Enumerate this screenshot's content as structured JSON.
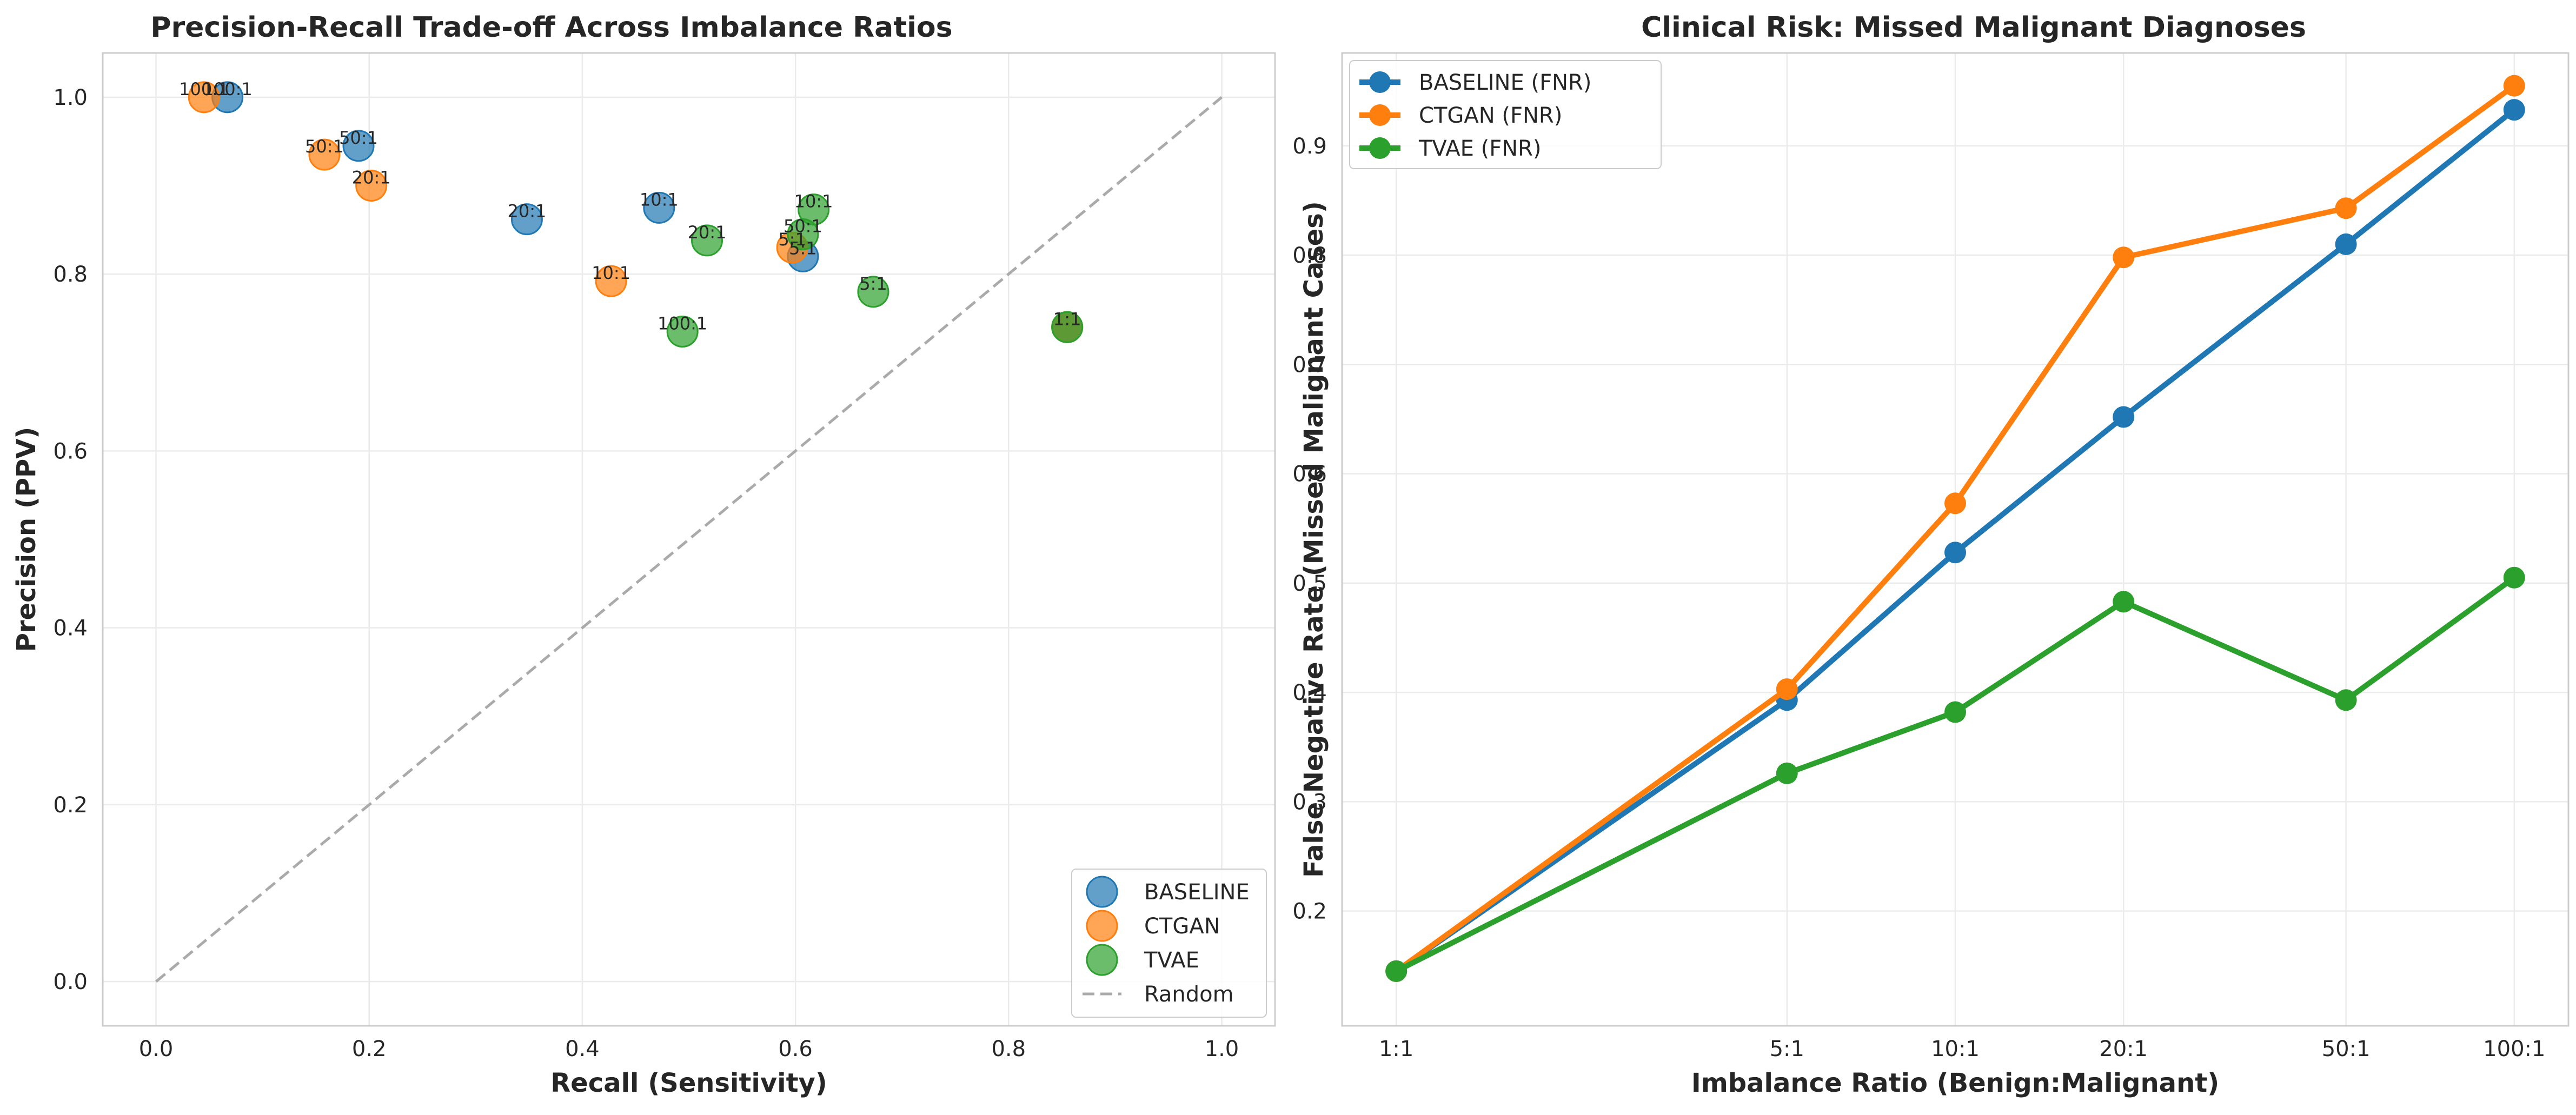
{
  "colors": {
    "BASELINE": "#1f77b4",
    "CTGAN": "#ff7f0e",
    "TVAE": "#2ca02c",
    "Random": "#aaaaaa"
  },
  "chart_data": [
    {
      "type": "scatter",
      "title": "Precision-Recall Trade-off Across Imbalance Ratios",
      "xlabel": "Recall (Sensitivity)",
      "ylabel": "Precision (PPV)",
      "xlim": [
        -0.05,
        1.05
      ],
      "ylim": [
        -0.05,
        1.05
      ],
      "xticks": [
        "0.0",
        "0.2",
        "0.4",
        "0.6",
        "0.8",
        "1.0"
      ],
      "yticks": [
        "0.0",
        "0.2",
        "0.4",
        "0.6",
        "0.8",
        "1.0"
      ],
      "grid": true,
      "legend_position": "lower-right",
      "series": [
        {
          "name": "BASELINE",
          "points": [
            {
              "x": 0.855,
              "y": 0.74,
              "label": "1:1"
            },
            {
              "x": 0.607,
              "y": 0.82,
              "label": "5:1"
            },
            {
              "x": 0.472,
              "y": 0.875,
              "label": "10:1"
            },
            {
              "x": 0.348,
              "y": 0.862,
              "label": "20:1"
            },
            {
              "x": 0.19,
              "y": 0.945,
              "label": "50:1"
            },
            {
              "x": 0.067,
              "y": 1.0,
              "label": "100:1"
            }
          ]
        },
        {
          "name": "CTGAN",
          "points": [
            {
              "x": 0.855,
              "y": 0.74,
              "label": "1:1"
            },
            {
              "x": 0.597,
              "y": 0.83,
              "label": "5:1"
            },
            {
              "x": 0.427,
              "y": 0.792,
              "label": "10:1"
            },
            {
              "x": 0.202,
              "y": 0.9,
              "label": "20:1"
            },
            {
              "x": 0.158,
              "y": 0.935,
              "label": "50:1"
            },
            {
              "x": 0.045,
              "y": 1.0,
              "label": "100:1"
            }
          ]
        },
        {
          "name": "TVAE",
          "points": [
            {
              "x": 0.855,
              "y": 0.74,
              "label": "1:1"
            },
            {
              "x": 0.673,
              "y": 0.78,
              "label": "5:1"
            },
            {
              "x": 0.617,
              "y": 0.873,
              "label": "10:1"
            },
            {
              "x": 0.517,
              "y": 0.838,
              "label": "20:1"
            },
            {
              "x": 0.607,
              "y": 0.845,
              "label": "50:1"
            },
            {
              "x": 0.494,
              "y": 0.735,
              "label": "100:1"
            }
          ]
        }
      ],
      "reference_line": {
        "name": "Random",
        "x": [
          0,
          1
        ],
        "y": [
          0,
          1
        ]
      }
    },
    {
      "type": "line",
      "title": "Clinical Risk: Missed Malignant Diagnoses",
      "xlabel": "Imbalance Ratio (Benign:Malignant)",
      "ylabel": "False Negative Rate (Missed Malignant Cases)",
      "x_scale": "log",
      "categories": [
        "1:1",
        "5:1",
        "10:1",
        "20:1",
        "50:1",
        "100:1"
      ],
      "x": [
        1,
        5,
        10,
        20,
        50,
        100
      ],
      "ylim": [
        0.095,
        0.985
      ],
      "yticks": [
        "0.2",
        "0.3",
        "0.4",
        "0.5",
        "0.6",
        "0.7",
        "0.8",
        "0.9"
      ],
      "grid": true,
      "legend_position": "top-left",
      "series": [
        {
          "name": "BASELINE (FNR)",
          "key": "BASELINE",
          "values": [
            0.145,
            0.393,
            0.528,
            0.652,
            0.81,
            0.933
          ]
        },
        {
          "name": "CTGAN (FNR)",
          "key": "CTGAN",
          "values": [
            0.145,
            0.403,
            0.573,
            0.798,
            0.843,
            0.955
          ]
        },
        {
          "name": "TVAE (FNR)",
          "key": "TVAE",
          "values": [
            0.145,
            0.326,
            0.382,
            0.483,
            0.393,
            0.505
          ]
        }
      ]
    }
  ]
}
